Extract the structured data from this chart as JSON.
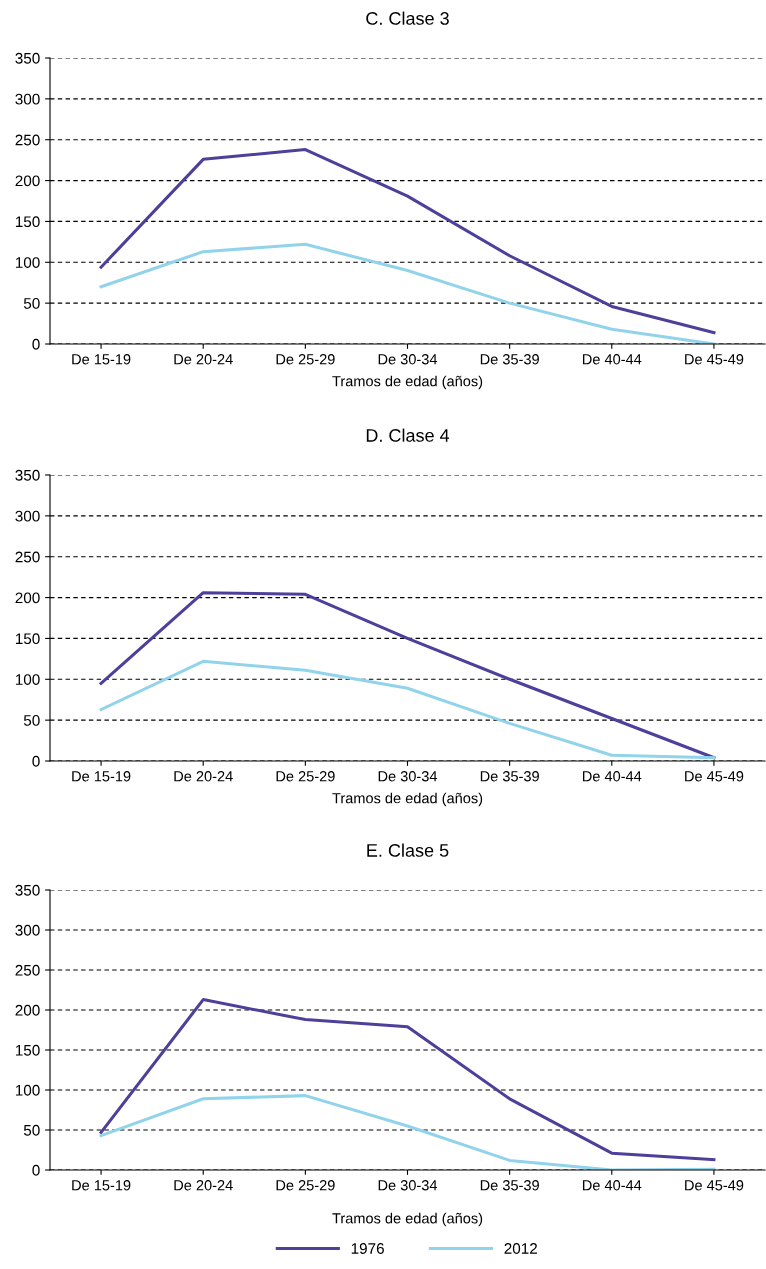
{
  "chart_data": [
    {
      "type": "line",
      "title": "C. Clase 3",
      "xlabel": "Tramos de edad (años)",
      "categories": [
        "De 15-19",
        "De 20-24",
        "De 25-29",
        "De 30-34",
        "De 35-39",
        "De 40-44",
        "De 45-49"
      ],
      "ylim": [
        0,
        350
      ],
      "yticks": [
        0,
        50,
        100,
        150,
        200,
        250,
        300,
        350
      ],
      "grid": "y",
      "legend": false,
      "marker": "none",
      "line_style": "solid",
      "series": [
        {
          "color": "#4f3f9a",
          "values": [
            94,
            226,
            238,
            181,
            108,
            46,
            14
          ]
        },
        {
          "color": "#92d3ec",
          "values": [
            70,
            113,
            122,
            90,
            50,
            18,
            0
          ]
        }
      ]
    },
    {
      "type": "line",
      "title": "D. Clase 4",
      "xlabel": "Tramos de edad (años)",
      "categories": [
        "De 15-19",
        "De 20-24",
        "De 25-29",
        "De 30-34",
        "De 35-39",
        "De 40-44",
        "De 45-49"
      ],
      "ylim": [
        0,
        350
      ],
      "yticks": [
        0,
        50,
        100,
        150,
        200,
        250,
        300,
        350
      ],
      "grid": "y",
      "legend": false,
      "marker": "none",
      "line_style": "solid",
      "series": [
        {
          "color": "#4f3f9a",
          "values": [
            95,
            206,
            204,
            150,
            100,
            52,
            4
          ]
        },
        {
          "color": "#92d3ec",
          "values": [
            63,
            122,
            111,
            89,
            46,
            7,
            4
          ]
        }
      ]
    },
    {
      "type": "line",
      "title": "E. Clase 5",
      "xlabel": "Tramos de edad (años)",
      "categories": [
        "De 15-19",
        "De 20-24",
        "De 25-29",
        "De 30-34",
        "De 35-39",
        "De 40-44",
        "De 45-49"
      ],
      "ylim": [
        0,
        350
      ],
      "yticks": [
        0,
        50,
        100,
        150,
        200,
        250,
        300,
        350
      ],
      "grid": "y",
      "legend": "bottom",
      "marker": "none",
      "line_style": "solid",
      "series": [
        {
          "name": "1976",
          "color": "#4f3f9a",
          "values": [
            47,
            213,
            188,
            179,
            89,
            21,
            13
          ]
        },
        {
          "name": "2012",
          "color": "#92d3ec",
          "values": [
            43,
            89,
            93,
            55,
            12,
            0,
            1
          ]
        }
      ]
    }
  ]
}
